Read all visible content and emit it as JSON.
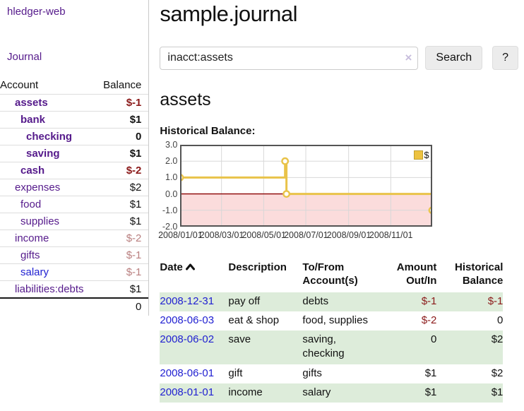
{
  "brand": "hledger-web",
  "sidebar": {
    "journal_link": "Journal",
    "table_headers": {
      "account": "Account",
      "balance": "Balance"
    },
    "accounts": [
      {
        "name": "assets",
        "balance": "$-1"
      },
      {
        "name": "bank",
        "balance": "$1"
      },
      {
        "name": "checking",
        "balance": "0"
      },
      {
        "name": "saving",
        "balance": "$1"
      },
      {
        "name": "cash",
        "balance": "$-2"
      },
      {
        "name": "expenses",
        "balance": "$2"
      },
      {
        "name": "food",
        "balance": "$1"
      },
      {
        "name": "supplies",
        "balance": "$1"
      },
      {
        "name": "income",
        "balance": "$-2"
      },
      {
        "name": "gifts",
        "balance": "$-1"
      },
      {
        "name": "salary",
        "balance": "$-1"
      },
      {
        "name": "liabilities:debts",
        "balance": "$1"
      }
    ],
    "total": "0"
  },
  "page": {
    "title": "sample.journal",
    "account_heading": "assets",
    "chart_label": "Historical Balance:"
  },
  "search": {
    "value": "inacct:assets",
    "clear_icon": "×",
    "button_label": "Search",
    "help_label": "?"
  },
  "chart_data": {
    "type": "line",
    "step": true,
    "title": "Historical Balance",
    "x_range": [
      "2008-01-01",
      "2008-12-31"
    ],
    "ylim": [
      -2,
      3
    ],
    "series": [
      {
        "name": "$",
        "color": "#e9c349",
        "points": [
          [
            "2008-01-01",
            1
          ],
          [
            "2008-06-01",
            2
          ],
          [
            "2008-06-03",
            0
          ],
          [
            "2008-12-31",
            -1
          ]
        ]
      }
    ],
    "y_ticks": [
      {
        "label": "3.0",
        "value": 3
      },
      {
        "label": "2.0",
        "value": 2
      },
      {
        "label": "1.0",
        "value": 1
      },
      {
        "label": "0.0",
        "value": 0
      },
      {
        "label": "-1.0",
        "value": -1
      },
      {
        "label": "-2.0",
        "value": -2
      }
    ],
    "x_ticks": [
      {
        "label": "2008/01/01",
        "date": "2008-01-01"
      },
      {
        "label": "2008/03/01",
        "date": "2008-03-01"
      },
      {
        "label": "2008/05/01",
        "date": "2008-05-01"
      },
      {
        "label": "2008/07/01",
        "date": "2008-07-01"
      },
      {
        "label": "2008/09/01",
        "date": "2008-09-01"
      },
      {
        "label": "2008/11/01",
        "date": "2008-11-01"
      }
    ],
    "legend": {
      "position": "top-right",
      "label": "$"
    },
    "colors": {
      "grid": "#d8d8d8",
      "border": "#545454",
      "zero_line": "#8b0000",
      "negative_region": "#fbdcdc"
    }
  },
  "register": {
    "headers": {
      "date": "Date",
      "description": "Description",
      "accounts": "To/From Account(s)",
      "amount": "Amount Out/In",
      "balance": "Historical Balance"
    },
    "rows": [
      {
        "date": "2008-12-31",
        "description": "pay off",
        "accounts": "debts",
        "amount": "$-1",
        "balance": "$-1"
      },
      {
        "date": "2008-06-03",
        "description": "eat & shop",
        "accounts": "food, supplies",
        "amount": "$-2",
        "balance": "0"
      },
      {
        "date": "2008-06-02",
        "description": "save",
        "accounts": "saving, checking",
        "amount": "0",
        "balance": "$2"
      },
      {
        "date": "2008-06-01",
        "description": "gift",
        "accounts": "gifts",
        "amount": "$1",
        "balance": "$2"
      },
      {
        "date": "2008-01-01",
        "description": "income",
        "accounts": "salary",
        "amount": "$1",
        "balance": "$1"
      }
    ]
  },
  "colors": {
    "link_purple": "#551a8b",
    "link_blue": "#1f1fd1",
    "negative_strong": "#8b1a1a",
    "negative_muted": "#b97f7f",
    "row_stripe_green": "#ddecda"
  }
}
